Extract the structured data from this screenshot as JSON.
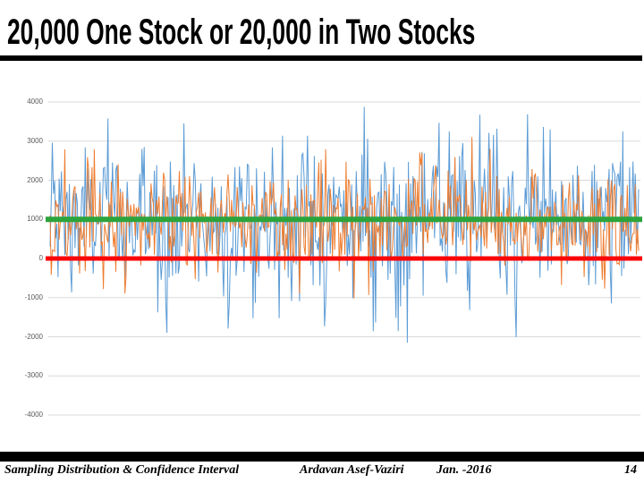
{
  "slide": {
    "title": "20,000 One Stock or 20,000 in Two Stocks",
    "footer": {
      "course": "Sampling Distribution & Confidence Interval",
      "author": "Ardavan Asef-Vaziri",
      "date": "Jan. -2016",
      "page_number": "14"
    }
  },
  "chart_data": {
    "type": "line",
    "title": "",
    "legend": "none",
    "x_axis": {
      "labels_visible": false,
      "n_points": 520
    },
    "y_axis": {
      "min": -4000,
      "max": 4000,
      "tick_step": 1000,
      "tick_labels": [
        "4000",
        "3000",
        "2000",
        "1000",
        "0",
        "-1000",
        "-2000",
        "-3000",
        "-4000"
      ],
      "tick_label_color": "#595959"
    },
    "gridlines": {
      "visible": true,
      "color": "#d9d9d9"
    },
    "series": [
      {
        "name": "one-stock",
        "color": "#5B9BD5",
        "mean": 1000,
        "stdev": 1050,
        "observed_min": -2150,
        "observed_max": 3950,
        "seed": 1234
      },
      {
        "name": "two-stocks",
        "color": "#ED7D31",
        "mean": 1000,
        "stdev": 720,
        "observed_min": -1400,
        "observed_max": 3100,
        "seed": 987
      }
    ],
    "reference_lines": [
      {
        "name": "mean-line",
        "value": 1000,
        "color": "#2BA43C",
        "thickness": 6
      },
      {
        "name": "zero-line",
        "value": 0,
        "color": "#FB0505",
        "thickness": 5
      }
    ]
  }
}
